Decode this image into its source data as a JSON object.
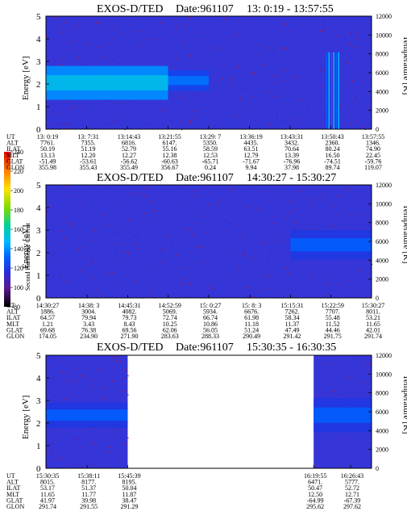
{
  "colorbar": {
    "label": "Second Harmonic Current",
    "ticks": [
      "240",
      "220",
      "200",
      "180",
      "160",
      "140",
      "120",
      "100",
      "80"
    ]
  },
  "panels": [
    {
      "title": "EXOS-D/TED",
      "date": "Date:961107",
      "time_range": "13: 0:19 - 13:57:55",
      "ylabel": "Energy [eV]",
      "ylabel_right": "Temperature [K]",
      "y_ticks": [
        "0",
        "1",
        "2",
        "3",
        "4",
        "5"
      ],
      "y_ticks_right": [
        "0",
        "2000",
        "4000",
        "6000",
        "8000",
        "10000",
        "12000"
      ],
      "orbit_rows": [
        "UT",
        "ALT",
        "ILAT",
        "MLT",
        "GLAT",
        "GLON"
      ],
      "columns": [
        [
          "13: 0:19",
          "7761.",
          "50.19",
          "13.13",
          "-51.49",
          "355.98"
        ],
        [
          "13: 7:31",
          "7355.",
          "51.19",
          "12.20",
          "-53.61",
          "355.43"
        ],
        [
          "13:14:43",
          "6816.",
          "52.79",
          "12.27",
          "-56.62",
          "355.49"
        ],
        [
          "13:21:55",
          "6147.",
          "55.16",
          "12.38",
          "-60.63",
          "356.67"
        ],
        [
          "13:29: 7",
          "5350.",
          "58.59",
          "12.53",
          "-65.71",
          "0.24"
        ],
        [
          "13:36:19",
          "4435.",
          "63.51",
          "12.79",
          "-71.67",
          "9.94"
        ],
        [
          "13:43:31",
          "3432.",
          "70.64",
          "13.39",
          "-76.96",
          "37.98"
        ],
        [
          "13:50:43",
          "2360.",
          "80.24",
          "16.50",
          "-74.51",
          "89.74"
        ],
        [
          "13:57:55",
          "1346.",
          "74.90",
          "22.45",
          "-59.76",
          "119.07"
        ]
      ]
    },
    {
      "title": "EXOS-D/TED",
      "date": "Date:961107",
      "time_range": "14:30:27 - 15:30:27",
      "ylabel": "Energy [eV]",
      "ylabel_right": "Temperature [K]",
      "y_ticks": [
        "0",
        "1",
        "2",
        "3",
        "4",
        "5"
      ],
      "y_ticks_right": [
        "0",
        "2000",
        "4000",
        "6000",
        "8000",
        "10000",
        "12000"
      ],
      "orbit_rows": [
        "UT",
        "ALT",
        "ILAT",
        "MLT",
        "GLAT",
        "GLON"
      ],
      "columns": [
        [
          "14:30:27",
          "1886.",
          "64.57",
          "1.21",
          "69.68",
          "174.05"
        ],
        [
          "14:38: 3",
          "3004.",
          "79.94",
          "3.43",
          "76.38",
          "234.90"
        ],
        [
          "14:45:31",
          "4082.",
          "79.73",
          "8.43",
          "69.56",
          "271.90"
        ],
        [
          "14:52:59",
          "5069.",
          "72.74",
          "10.25",
          "62.06",
          "283.63"
        ],
        [
          "15: 0:27",
          "5934.",
          "66.74",
          "10.86",
          "56.05",
          "288.33"
        ],
        [
          "15: 8: 3",
          "6676.",
          "61.98",
          "11.18",
          "51.24",
          "290.49"
        ],
        [
          "15:15:31",
          "7262.",
          "58.34",
          "11.37",
          "47.49",
          "291.42"
        ],
        [
          "15:22:59",
          "7707.",
          "55.48",
          "11.52",
          "44.46",
          "291.75"
        ],
        [
          "15:30:27",
          "8011.",
          "53.21",
          "11.65",
          "42.01",
          "291.74"
        ]
      ]
    },
    {
      "title": "EXOS-D/TED",
      "date": "Date:961107",
      "time_range": "15:30:35 - 16:30:35",
      "ylabel": "Energy [eV]",
      "ylabel_right": "Temperature [K]",
      "y_ticks": [
        "0",
        "1",
        "2",
        "3",
        "4",
        "5"
      ],
      "y_ticks_right": [
        "0",
        "2000",
        "4000",
        "6000",
        "8000",
        "10000",
        "12000"
      ],
      "orbit_rows": [
        "UT",
        "ALT",
        "ILAT",
        "MLT",
        "GLAT",
        "GLON"
      ],
      "columns": [
        [
          "15:30:35",
          "8015.",
          "53.17",
          "11.65",
          "41.97",
          "291.74"
        ],
        [
          "15:38:11",
          "8177.",
          "51.37",
          "11.77",
          "39.98",
          "291.55"
        ],
        [
          "15:45:39",
          "8195.",
          "50.04",
          "11.87",
          "38.47",
          "291.29"
        ],
        [
          "16:19:55",
          "6471.",
          "50.47",
          "12.50",
          "-64.99",
          "295.62"
        ],
        [
          "16:26:43",
          "5777.",
          "52.72",
          "12.71",
          "-67.39",
          "297.62"
        ]
      ]
    }
  ],
  "chart_data": [
    {
      "type": "heatmap",
      "title": "EXOS-D/TED  Date:961107  13: 0:19 - 13:57:55",
      "xlabel": "UT",
      "ylabel": "Energy [eV]",
      "ylabel_right": "Temperature [K]",
      "ylim": [
        0,
        5
      ],
      "ylim_right": [
        0,
        12000
      ],
      "x": [
        "13: 0:19",
        "13: 7:31",
        "13:14:43",
        "13:21:55",
        "13:29: 7",
        "13:36:19",
        "13:43:31",
        "13:50:43",
        "13:57:55"
      ],
      "colorbar": {
        "label": "Second Harmonic Current",
        "range": [
          80,
          240
        ]
      },
      "bands": [
        {
          "x_from": "13: 0:19",
          "x_to": "13:21:55",
          "energy_low": 1.3,
          "energy_high": 2.8,
          "level": 165
        },
        {
          "x_from": "13:21:55",
          "x_to": "13:29: 7",
          "energy_low": 1.7,
          "energy_high": 2.6,
          "level": 145
        }
      ],
      "spikes": [
        {
          "x": "13:50:43",
          "energy_low": 0,
          "energy_high": 3.4,
          "level": 140
        }
      ]
    },
    {
      "type": "heatmap",
      "title": "EXOS-D/TED  Date:961107  14:30:27 - 15:30:27",
      "xlabel": "UT",
      "ylabel": "Energy [eV]",
      "ylabel_right": "Temperature [K]",
      "ylim": [
        0,
        5
      ],
      "ylim_right": [
        0,
        12000
      ],
      "x": [
        "14:30:27",
        "14:38: 3",
        "14:45:31",
        "14:52:59",
        "15: 0:27",
        "15: 8: 3",
        "15:15:31",
        "15:22:59",
        "15:30:27"
      ],
      "colorbar": {
        "label": "Second Harmonic Current",
        "range": [
          80,
          240
        ]
      },
      "bands": [
        {
          "x_from": "15:15:31",
          "x_to": "15:30:27",
          "energy_low": 1.7,
          "energy_high": 3.0,
          "level": 140
        }
      ]
    },
    {
      "type": "heatmap",
      "title": "EXOS-D/TED  Date:961107  15:30:35 - 16:30:35",
      "xlabel": "UT",
      "ylabel": "Energy [eV]",
      "ylabel_right": "Temperature [K]",
      "ylim": [
        0,
        5
      ],
      "ylim_right": [
        0,
        12000
      ],
      "x": [
        "15:30:35",
        "15:38:11",
        "15:45:39",
        "16:19:55",
        "16:26:43"
      ],
      "colorbar": {
        "label": "Second Harmonic Current",
        "range": [
          80,
          240
        ]
      },
      "data_gap": {
        "from": "15:45:39",
        "to": "16:19:55"
      },
      "bands": [
        {
          "x_from": "15:30:35",
          "x_to": "15:45:39",
          "energy_low": 1.8,
          "energy_high": 2.9,
          "level": 140
        },
        {
          "x_from": "16:19:55",
          "x_to": "16:30:35",
          "energy_low": 1.6,
          "energy_high": 3.1,
          "level": 140
        }
      ]
    }
  ]
}
